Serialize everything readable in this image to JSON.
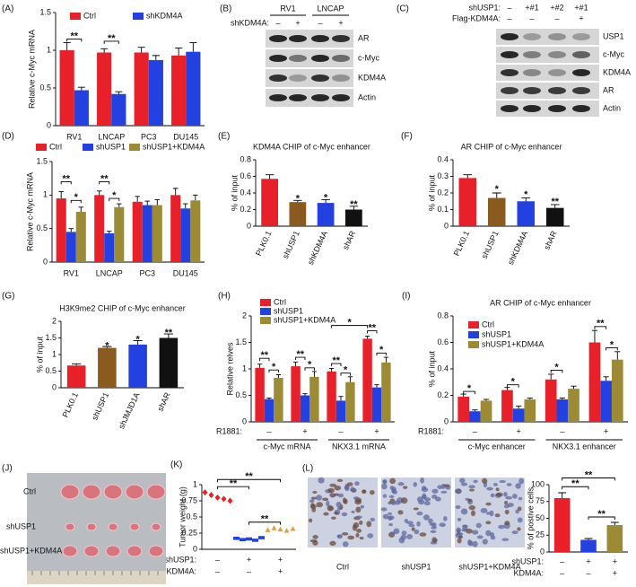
{
  "chart_data": [
    {
      "panel": "(A)",
      "type": "bar",
      "ylabel": "Relative c-Myc mRNA",
      "categories": [
        "RV1",
        "LNCAP",
        "PC3",
        "DU145"
      ],
      "series": [
        {
          "name": "Ctrl",
          "color": "#e8202a",
          "values": [
            1.0,
            0.97,
            0.97,
            0.93
          ],
          "errors": [
            0.1,
            0.05,
            0.07,
            0.1
          ]
        },
        {
          "name": "shKDM4A",
          "color": "#2340e0",
          "values": [
            0.47,
            0.42,
            0.87,
            0.98
          ],
          "errors": [
            0.04,
            0.03,
            0.06,
            0.12
          ]
        }
      ],
      "ylim": [
        0,
        1.5
      ],
      "yticks": [
        0,
        0.5,
        1,
        1.5
      ],
      "annotations": [
        "**",
        "**"
      ]
    },
    {
      "panel": "(D)",
      "type": "bar",
      "ylabel": "Relative c-Myc mRNA",
      "categories": [
        "RV1",
        "LNCAP",
        "PC3",
        "DU145"
      ],
      "series": [
        {
          "name": "Ctrl",
          "color": "#e8202a",
          "values": [
            0.95,
            1.0,
            0.9,
            1.0
          ],
          "errors": [
            0.1,
            0.06,
            0.08,
            0.1
          ]
        },
        {
          "name": "shUSP1",
          "color": "#2340e0",
          "values": [
            0.45,
            0.43,
            0.85,
            0.8
          ],
          "errors": [
            0.05,
            0.03,
            0.06,
            0.07
          ]
        },
        {
          "name": "shUSP1+KDM4A",
          "color": "#9c8a35",
          "values": [
            0.75,
            0.82,
            0.85,
            0.92
          ],
          "errors": [
            0.07,
            0.05,
            0.08,
            0.08
          ]
        }
      ],
      "ylim": [
        0,
        1.5
      ],
      "yticks": [
        0,
        0.5,
        1,
        1.5
      ],
      "annotations": [
        "**",
        "*",
        "**",
        "*"
      ]
    },
    {
      "panel": "(E)",
      "type": "bar",
      "title": "KDM4A CHIP of c-Myc enhancer",
      "ylabel": "% of input",
      "categories": [
        "PLK0.1",
        "shUSP1",
        "shKDM4A",
        "shAR"
      ],
      "values": [
        0.57,
        0.29,
        0.28,
        0.2
      ],
      "errors": [
        0.05,
        0.02,
        0.04,
        0.04
      ],
      "colors": [
        "#e8202a",
        "#8a5a1e",
        "#2340e0",
        "#111111"
      ],
      "ylim": [
        0,
        0.8
      ],
      "yticks": [
        0,
        0.2,
        0.4,
        0.6,
        0.8
      ],
      "annotations": [
        "*",
        "*",
        "**"
      ]
    },
    {
      "panel": "(F)",
      "type": "bar",
      "title": "AR CHIP of c-Myc enhancer",
      "ylabel": "% of input",
      "categories": [
        "PLK0.1",
        "shUSP1",
        "shKDM4A",
        "shAR"
      ],
      "values": [
        0.29,
        0.17,
        0.15,
        0.11
      ],
      "errors": [
        0.02,
        0.03,
        0.02,
        0.02
      ],
      "colors": [
        "#e8202a",
        "#8a5a1e",
        "#2340e0",
        "#111111"
      ],
      "ylim": [
        0,
        0.4
      ],
      "yticks": [
        0,
        0.1,
        0.2,
        0.3,
        0.4
      ],
      "annotations": [
        "*",
        "*",
        "**"
      ]
    },
    {
      "panel": "(G)",
      "type": "bar",
      "title": "H3K9me2 CHIP of c-Myc enhancer",
      "ylabel": "% of input",
      "categories": [
        "PLK0.1",
        "shUSP1",
        "shJMJD1A",
        "shAR"
      ],
      "values": [
        0.67,
        1.2,
        1.3,
        1.5
      ],
      "errors": [
        0.05,
        0.04,
        0.12,
        0.12
      ],
      "colors": [
        "#e8202a",
        "#8a5a1e",
        "#2340e0",
        "#111111"
      ],
      "ylim": [
        0,
        2
      ],
      "yticks": [
        0,
        0.5,
        1,
        1.5,
        2
      ],
      "annotations": [
        "*",
        "*",
        "**"
      ]
    },
    {
      "panel": "(H)",
      "type": "bar",
      "ylabel": "Relative relves",
      "categories": [
        "–",
        "+",
        "–",
        "+"
      ],
      "category_label": "R1881:",
      "groups": [
        "c-Myc mRNA",
        "NKX3.1 mRNA"
      ],
      "series": [
        {
          "name": "Ctrl",
          "color": "#e8202a",
          "values": [
            1.02,
            1.05,
            0.95,
            1.57
          ],
          "errors": [
            0.07,
            0.08,
            0.06,
            0.05
          ]
        },
        {
          "name": "shUSP1",
          "color": "#2340e0",
          "values": [
            0.43,
            0.5,
            0.4,
            0.65
          ],
          "errors": [
            0.02,
            0.03,
            0.08,
            0.05
          ]
        },
        {
          "name": "shUSP1+KDM4A",
          "color": "#9c8a35",
          "values": [
            0.83,
            0.85,
            0.75,
            1.12
          ],
          "errors": [
            0.06,
            0.1,
            0.1,
            0.1
          ]
        }
      ],
      "ylim": [
        0,
        2
      ],
      "yticks": [
        0,
        0.5,
        1,
        1.5,
        2
      ],
      "annotations": [
        "**",
        "*",
        "**",
        "*",
        "**",
        "*",
        "*",
        "**",
        "*"
      ]
    },
    {
      "panel": "(I)",
      "type": "bar",
      "title": "AR CHIP of c-Myc enhancer",
      "ylabel": "% of input",
      "categories": [
        "–",
        "+",
        "–",
        "+"
      ],
      "category_label": "R1881:",
      "groups": [
        "c-Myc enhancer",
        "NKX3.1 enhancer"
      ],
      "series": [
        {
          "name": "Ctrl",
          "color": "#e8202a",
          "values": [
            0.19,
            0.24,
            0.32,
            0.6
          ],
          "errors": [
            0.02,
            0.02,
            0.04,
            0.09
          ]
        },
        {
          "name": "shUSP1",
          "color": "#2340e0",
          "values": [
            0.08,
            0.1,
            0.17,
            0.31
          ],
          "errors": [
            0.01,
            0.02,
            0.01,
            0.03
          ]
        },
        {
          "name": "shUSP1+KDM4A",
          "color": "#9c8a35",
          "values": [
            0.16,
            0.17,
            0.25,
            0.47
          ],
          "errors": [
            0.01,
            0.01,
            0.02,
            0.06
          ]
        }
      ],
      "ylim": [
        0,
        0.8
      ],
      "yticks": [
        0,
        0.2,
        0.4,
        0.6,
        0.8
      ],
      "annotations": [
        "*",
        "*",
        "*",
        "**",
        "*"
      ]
    },
    {
      "panel": "(K)",
      "type": "scatter",
      "ylabel": "Tumor weight (g)",
      "category_rows": [
        {
          "label": "shUSP1:",
          "values": [
            "–",
            "+",
            "+"
          ]
        },
        {
          "label": "KDM4A:",
          "values": [
            "–",
            "–",
            "+"
          ]
        }
      ],
      "series": [
        {
          "color": "#e8202a",
          "values": [
            0.88,
            0.84,
            0.8,
            0.78,
            0.75
          ]
        },
        {
          "color": "#2340e0",
          "values": [
            0.17,
            0.15,
            0.16,
            0.14,
            0.18
          ]
        },
        {
          "color": "#e0a040",
          "values": [
            0.3,
            0.33,
            0.31,
            0.29,
            0.32
          ]
        }
      ],
      "ylim": [
        0,
        1
      ],
      "yticks": [
        0,
        0.25,
        0.5,
        0.75,
        1
      ],
      "annotations": [
        "**",
        "**",
        "**"
      ]
    },
    {
      "type": "bar",
      "ylabel": "% of postive cells",
      "category_rows": [
        {
          "label": "shUSP1:",
          "values": [
            "–",
            "+",
            "+"
          ]
        },
        {
          "label": "KDM4A:",
          "values": [
            "–",
            "–",
            "+"
          ]
        }
      ],
      "values": [
        80,
        18,
        40
      ],
      "errors": [
        8,
        2,
        4
      ],
      "colors": [
        "#e8202a",
        "#2340e0",
        "#9c8a35"
      ],
      "ylim": [
        0,
        100
      ],
      "yticks": [
        0,
        25,
        50,
        75,
        100
      ],
      "annotations": [
        "**",
        "**",
        "**"
      ]
    }
  ],
  "blots": [
    {
      "panel": "(B)",
      "groups": [
        "RV1",
        "LNCAP"
      ],
      "lanes_header": [
        {
          "label": "shKDM4A:",
          "values": [
            "–",
            "+",
            "–",
            "+"
          ]
        }
      ],
      "bands": [
        "AR",
        "c-Myc",
        "KDM4A",
        "Actin"
      ]
    },
    {
      "panel": "(C)",
      "lanes_header": [
        {
          "label": "shUSP1:",
          "values": [
            "–",
            "+#1",
            "+#2",
            "+#1"
          ]
        },
        {
          "label": "Flag-KDM4A:",
          "values": [
            "–",
            "–",
            "–",
            "+"
          ]
        }
      ],
      "bands": [
        "USP1",
        "c-Myc",
        "KDM4A",
        "AR",
        "Actin"
      ]
    }
  ],
  "photo": {
    "panel": "(J)",
    "rows": [
      "Ctrl",
      "shUSP1",
      "shUSP1+KDM4A"
    ]
  },
  "histology": {
    "panel": "(L)",
    "captions": [
      "Ctrl",
      "shUSP1",
      "shUSP1+KDM4A"
    ]
  }
}
